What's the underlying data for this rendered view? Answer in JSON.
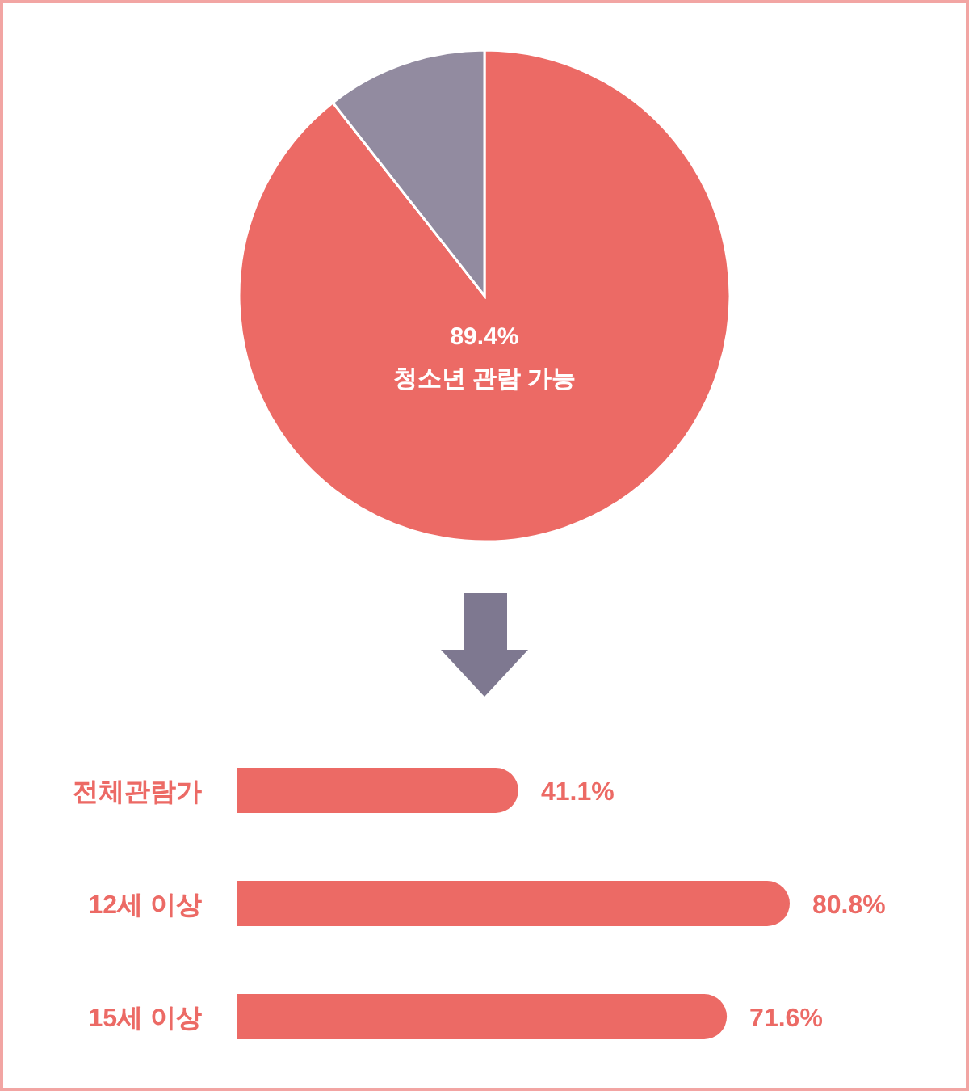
{
  "chart_data": [
    {
      "type": "pie",
      "categories": [
        "청소년 관람 가능",
        null
      ],
      "values": [
        89.4,
        10.6
      ],
      "colors": [
        "#ec6a65",
        "#928ba0"
      ],
      "value_labels": [
        "89.4%",
        null
      ]
    },
    {
      "type": "bar",
      "orientation": "horizontal",
      "categories": [
        "전체관람가",
        "12세 이상",
        "15세 이상"
      ],
      "values": [
        41.1,
        80.8,
        71.6
      ],
      "color": "#ec6a65",
      "value_labels": [
        "41.1%",
        "80.8%",
        "71.6%"
      ]
    }
  ]
}
